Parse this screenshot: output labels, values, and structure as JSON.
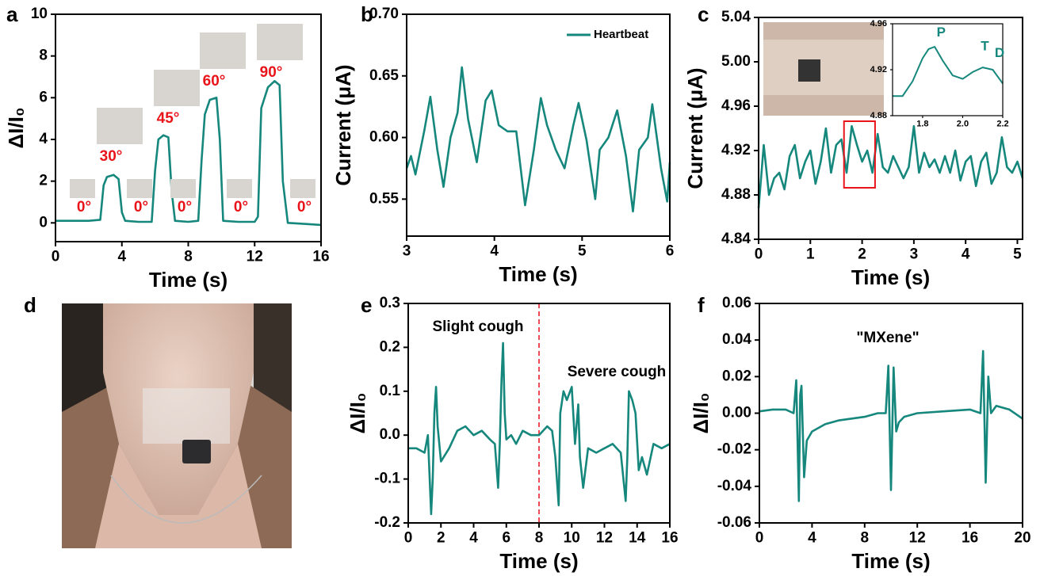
{
  "chart_data": [
    {
      "type": "line",
      "panel": "a",
      "xlabel": "Time (s)",
      "ylabel": "ΔI/I₀",
      "xlim": [
        0,
        16
      ],
      "ylim": [
        -0.9,
        10
      ],
      "xticks": [
        0,
        4,
        8,
        12,
        16
      ],
      "yticks": [
        0,
        2,
        4,
        6,
        8,
        10
      ],
      "annotations": [
        "0°",
        "30°",
        "0°",
        "45°",
        "0°",
        "60°",
        "0°",
        "90°",
        "0°"
      ],
      "annotation_color": "#e8141a",
      "series": [
        {
          "color": "#16877c",
          "x": [
            0,
            1,
            2,
            2.7,
            2.9,
            3.1,
            3.5,
            3.8,
            4.0,
            4.2,
            5,
            5.8,
            6.0,
            6.2,
            6.5,
            6.8,
            7.0,
            7.2,
            8,
            8.6,
            8.8,
            9.0,
            9.3,
            9.7,
            9.9,
            10.1,
            11,
            12,
            12.2,
            12.4,
            12.8,
            13.2,
            13.5,
            13.7,
            14,
            15,
            16
          ],
          "values": [
            0.1,
            0.1,
            0.1,
            0.15,
            1.8,
            2.2,
            2.3,
            2.1,
            0.5,
            0.1,
            0.05,
            0.05,
            2.5,
            4.0,
            4.2,
            4.1,
            1.5,
            0.1,
            0.05,
            0.1,
            3.0,
            5.2,
            5.9,
            6.0,
            4.0,
            0.1,
            0.05,
            0.05,
            0.3,
            5.5,
            6.5,
            6.8,
            6.6,
            2.0,
            0.0,
            -0.05,
            -0.1
          ]
        }
      ]
    },
    {
      "type": "line",
      "panel": "b",
      "xlabel": "Time (s)",
      "ylabel": "Current (μA)",
      "xlim": [
        3,
        6
      ],
      "ylim": [
        0.52,
        0.7
      ],
      "xticks": [
        3,
        4,
        5,
        6
      ],
      "yticks": [
        0.55,
        {
          "value": 0.6,
          "label": "0.60"
        },
        0.65,
        {
          "value": 0.7,
          "label": "0.70"
        }
      ],
      "legend": "upper right",
      "series": [
        {
          "name": "Heartbeat",
          "color": "#16877c",
          "x": [
            3.0,
            3.05,
            3.1,
            3.2,
            3.27,
            3.35,
            3.42,
            3.5,
            3.58,
            3.63,
            3.7,
            3.8,
            3.9,
            3.97,
            4.05,
            4.15,
            4.25,
            4.35,
            4.45,
            4.53,
            4.6,
            4.7,
            4.8,
            4.9,
            4.96,
            5.05,
            5.15,
            5.2,
            5.3,
            5.4,
            5.5,
            5.58,
            5.65,
            5.75,
            5.8,
            5.9,
            5.97,
            6.0
          ],
          "values": [
            0.575,
            0.585,
            0.57,
            0.605,
            0.633,
            0.59,
            0.56,
            0.6,
            0.62,
            0.657,
            0.615,
            0.58,
            0.63,
            0.638,
            0.61,
            0.605,
            0.605,
            0.545,
            0.59,
            0.632,
            0.61,
            0.59,
            0.575,
            0.61,
            0.628,
            0.598,
            0.55,
            0.59,
            0.6,
            0.622,
            0.585,
            0.54,
            0.59,
            0.6,
            0.627,
            0.575,
            0.548,
            0.58
          ]
        }
      ]
    },
    {
      "type": "line",
      "panel": "c",
      "xlabel": "Time (s)",
      "ylabel": "Current (μA)",
      "xlim": [
        0,
        5.1
      ],
      "ylim": [
        4.84,
        5.04
      ],
      "xticks": [
        0,
        1,
        2,
        3,
        4,
        5
      ],
      "yticks": [
        4.84,
        4.88,
        4.92,
        4.96,
        {
          "value": 5,
          "label": "5.00"
        },
        5.04
      ],
      "series": [
        {
          "color": "#16877c",
          "x": [
            0,
            0.1,
            0.2,
            0.3,
            0.4,
            0.5,
            0.6,
            0.7,
            0.8,
            0.9,
            1.0,
            1.1,
            1.2,
            1.3,
            1.4,
            1.5,
            1.6,
            1.7,
            1.8,
            1.9,
            2.0,
            2.1,
            2.2,
            2.3,
            2.4,
            2.5,
            2.6,
            2.7,
            2.8,
            2.9,
            3.0,
            3.1,
            3.2,
            3.3,
            3.4,
            3.5,
            3.6,
            3.7,
            3.8,
            3.9,
            4.0,
            4.1,
            4.2,
            4.3,
            4.4,
            4.5,
            4.6,
            4.7,
            4.8,
            4.9,
            5.0,
            5.1
          ],
          "values": [
            4.868,
            4.925,
            4.88,
            4.895,
            4.9,
            4.885,
            4.915,
            4.925,
            4.895,
            4.91,
            4.92,
            4.89,
            4.91,
            4.94,
            4.9,
            4.925,
            4.93,
            4.9,
            4.942,
            4.925,
            4.91,
            4.92,
            4.9,
            4.935,
            4.905,
            4.9,
            4.915,
            4.905,
            4.895,
            4.905,
            4.942,
            4.9,
            4.918,
            4.905,
            4.912,
            4.9,
            4.915,
            4.9,
            4.92,
            4.893,
            4.91,
            4.915,
            4.888,
            4.91,
            4.918,
            4.89,
            4.9,
            4.932,
            4.905,
            4.9,
            4.91,
            4.895
          ]
        }
      ],
      "inset": {
        "xlim": [
          1.65,
          2.2
        ],
        "ylim": [
          4.88,
          4.96
        ],
        "xticks": [
          1.8,
          {
            "value": 2,
            "label": "2.0"
          },
          2.2
        ],
        "yticks": [
          4.88,
          4.92,
          4.96
        ],
        "annotations": [
          "P",
          "T",
          "D"
        ],
        "series": [
          {
            "color": "#16877c",
            "x": [
              1.65,
              1.7,
              1.75,
              1.8,
              1.83,
              1.86,
              1.9,
              1.95,
              2.0,
              2.05,
              2.1,
              2.15,
              2.2
            ],
            "values": [
              4.897,
              4.897,
              4.91,
              4.93,
              4.938,
              4.94,
              4.928,
              4.915,
              4.912,
              4.918,
              4.922,
              4.92,
              4.908
            ]
          }
        ]
      }
    },
    {
      "type": "photo",
      "panel": "d"
    },
    {
      "type": "line",
      "panel": "e",
      "xlabel": "Time (s)",
      "ylabel": "ΔI/I₀",
      "xlim": [
        0,
        16
      ],
      "ylim": [
        -0.2,
        0.3
      ],
      "xticks": [
        0,
        2,
        4,
        6,
        8,
        10,
        12,
        14,
        16
      ],
      "yticks": [
        -0.2,
        -0.1,
        {
          "value": 0,
          "label": "0.0"
        },
        0.1,
        0.2,
        0.3
      ],
      "annotations": [
        "Slight cough",
        "Severe cough"
      ],
      "divider_x": 8,
      "divider_color": "#e8141a",
      "series": [
        {
          "color": "#16877c",
          "x": [
            0,
            0.5,
            1.0,
            1.2,
            1.4,
            1.5,
            1.6,
            1.7,
            1.8,
            2.0,
            2.5,
            3,
            3.5,
            4,
            4.5,
            5,
            5.3,
            5.5,
            5.6,
            5.7,
            5.8,
            5.9,
            6.0,
            6.3,
            6.6,
            7,
            7.5,
            8,
            8.5,
            8.8,
            9.0,
            9.2,
            9.3,
            9.5,
            9.7,
            10.0,
            10.2,
            10.4,
            10.5,
            10.7,
            11,
            11.5,
            12,
            12.5,
            13,
            13.3,
            13.4,
            13.5,
            13.7,
            13.9,
            14.1,
            14.3,
            14.6,
            15,
            15.5,
            16
          ],
          "values": [
            -0.03,
            -0.03,
            -0.04,
            0.0,
            -0.18,
            -0.1,
            0.05,
            0.11,
            0.02,
            -0.06,
            -0.03,
            0.01,
            0.02,
            0.0,
            0.01,
            -0.01,
            -0.02,
            -0.12,
            -0.02,
            0.12,
            0.21,
            0.05,
            -0.01,
            0.0,
            -0.02,
            0.01,
            0.0,
            0.0,
            0.02,
            0.01,
            -0.05,
            -0.16,
            0.05,
            0.1,
            0.08,
            0.11,
            -0.02,
            0.07,
            -0.05,
            -0.12,
            -0.03,
            -0.04,
            -0.03,
            -0.02,
            -0.04,
            -0.15,
            -0.05,
            0.1,
            0.08,
            0.05,
            -0.08,
            -0.05,
            -0.09,
            -0.02,
            -0.03,
            -0.02
          ]
        }
      ]
    },
    {
      "type": "line",
      "panel": "f",
      "xlabel": "Time (s)",
      "ylabel": "ΔI/I₀",
      "xlim": [
        0,
        20
      ],
      "ylim": [
        -0.06,
        0.06
      ],
      "xticks": [
        0,
        4,
        8,
        12,
        16,
        20
      ],
      "yticks": [
        -0.06,
        -0.04,
        -0.02,
        {
          "value": 0,
          "label": "0.00"
        },
        {
          "value": 0.02,
          "label": "0.02"
        },
        {
          "value": 0.04,
          "label": "0.04"
        },
        {
          "value": 0.06,
          "label": "0.06"
        }
      ],
      "annotations": [
        "\"MXene\""
      ],
      "series": [
        {
          "color": "#16877c",
          "x": [
            0,
            1,
            2,
            2.6,
            2.8,
            3.0,
            3.1,
            3.2,
            3.4,
            3.6,
            4,
            5,
            6,
            8,
            9,
            9.6,
            9.8,
            10.0,
            10.2,
            10.4,
            10.6,
            11,
            12,
            14,
            16,
            16.8,
            17.0,
            17.2,
            17.4,
            17.6,
            18,
            19,
            20
          ],
          "values": [
            0.001,
            0.002,
            0.002,
            0.0,
            0.018,
            -0.048,
            0.01,
            0.015,
            -0.035,
            -0.015,
            -0.01,
            -0.006,
            -0.004,
            -0.002,
            0.0,
            0.0,
            0.026,
            -0.042,
            0.025,
            -0.01,
            -0.005,
            -0.002,
            0.0,
            0.001,
            0.002,
            0.0,
            0.034,
            -0.038,
            0.02,
            0.0,
            0.004,
            0.002,
            -0.003
          ]
        }
      ]
    }
  ]
}
